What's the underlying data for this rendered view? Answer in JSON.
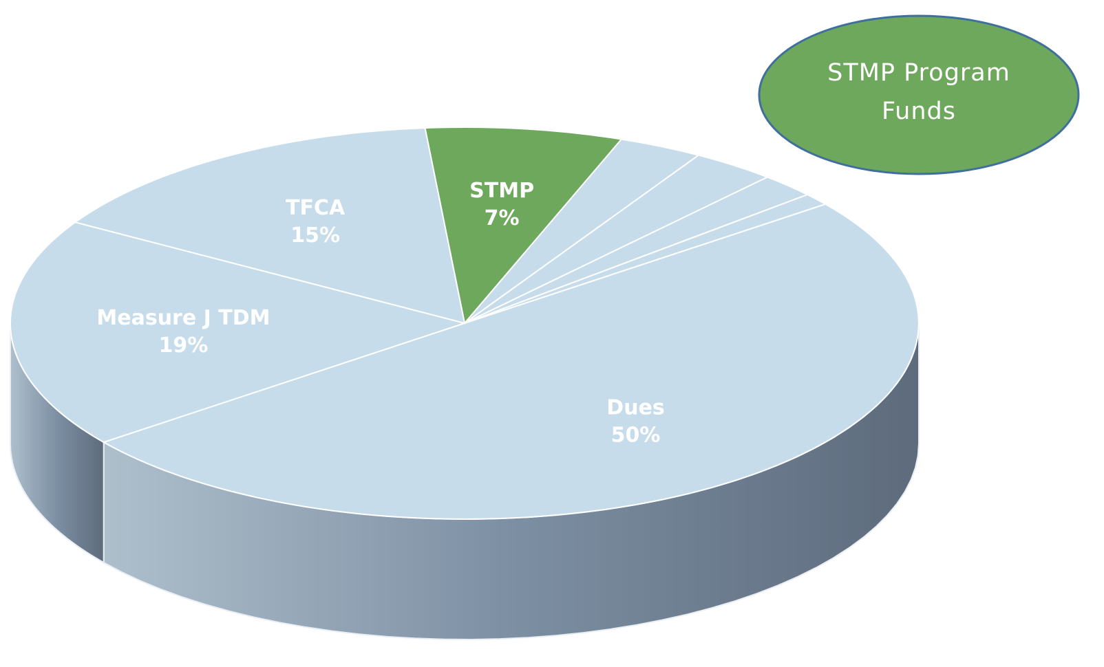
{
  "chart_data": {
    "type": "pie",
    "annotation": "STMP Program Funds",
    "categories": [
      "STMP",
      null,
      null,
      null,
      null,
      "Dues",
      "Measure J TDM",
      "TFCA"
    ],
    "values": [
      7,
      3,
      3,
      2,
      1,
      50,
      19,
      15
    ],
    "value_labels": [
      "7%",
      null,
      null,
      null,
      null,
      "50%",
      "19%",
      "15%"
    ],
    "colors": [
      "#6ea85c",
      "#c6dcea",
      "#c6dcea",
      "#c6dcea",
      "#c6dcea",
      "#c6dcea",
      "#c6dcea",
      "#c6dcea"
    ]
  }
}
